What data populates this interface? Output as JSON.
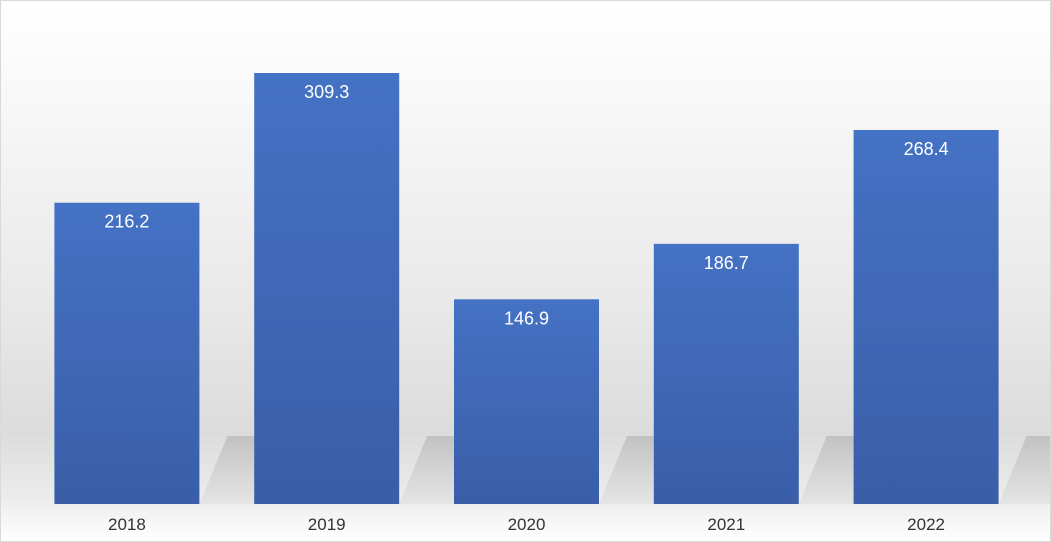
{
  "chart_data": {
    "type": "bar",
    "title": "",
    "xlabel": "",
    "ylabel": "",
    "categories": [
      "2018",
      "2019",
      "2020",
      "2021",
      "2022"
    ],
    "values": [
      216.2,
      309.3,
      146.9,
      186.7,
      268.4
    ],
    "value_labels": [
      "216.2",
      "309.3",
      "146.9",
      "186.7",
      "268.4"
    ],
    "ylim": [
      0,
      330
    ],
    "grid": false,
    "legend": "none",
    "colors": {
      "bar_top": "#4472c4",
      "bar_bottom": "#3a5ea8",
      "label_text": "#ffffff",
      "tick_text": "#333333"
    }
  }
}
